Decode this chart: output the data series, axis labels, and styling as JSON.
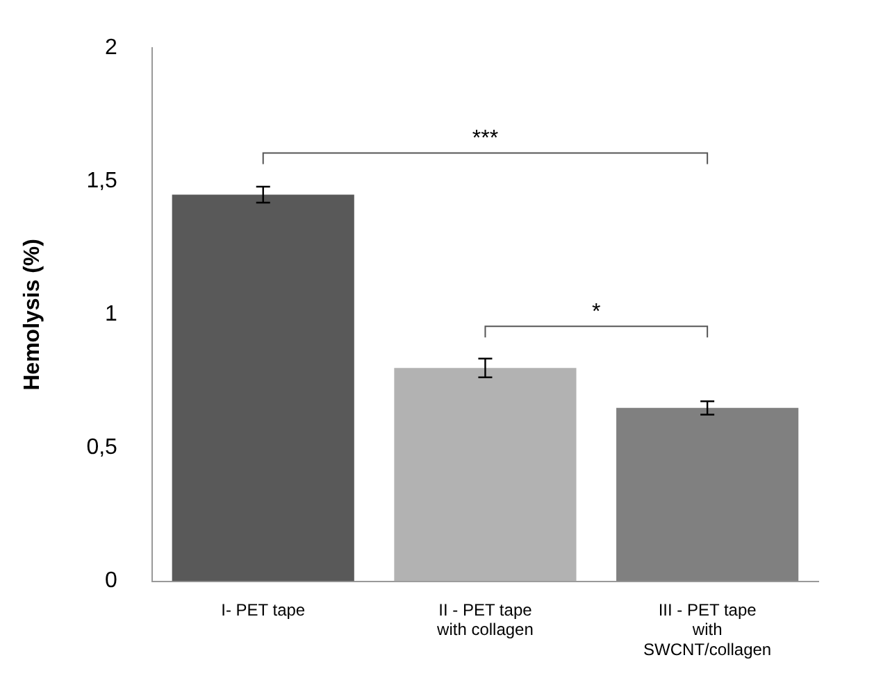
{
  "chart_data": {
    "type": "bar",
    "ylabel": "Hemolysis (%)",
    "categories": [
      "I- PET tape",
      "II - PET tape with collagen",
      "III - PET tape with SWCNT/collagen"
    ],
    "values": [
      1.45,
      0.8,
      0.65
    ],
    "colors": [
      "#595959",
      "#b2b2b2",
      "#808080"
    ],
    "errors": [
      0.03,
      0.035,
      0.025
    ],
    "ylim": [
      0,
      2
    ],
    "yticks": [
      0,
      {
        "value": 0.5,
        "label": "0,5"
      },
      1,
      {
        "value": 1.5,
        "label": "1,5"
      },
      2
    ],
    "grid": false,
    "legend": false,
    "annotations": [
      "***",
      "*"
    ]
  }
}
